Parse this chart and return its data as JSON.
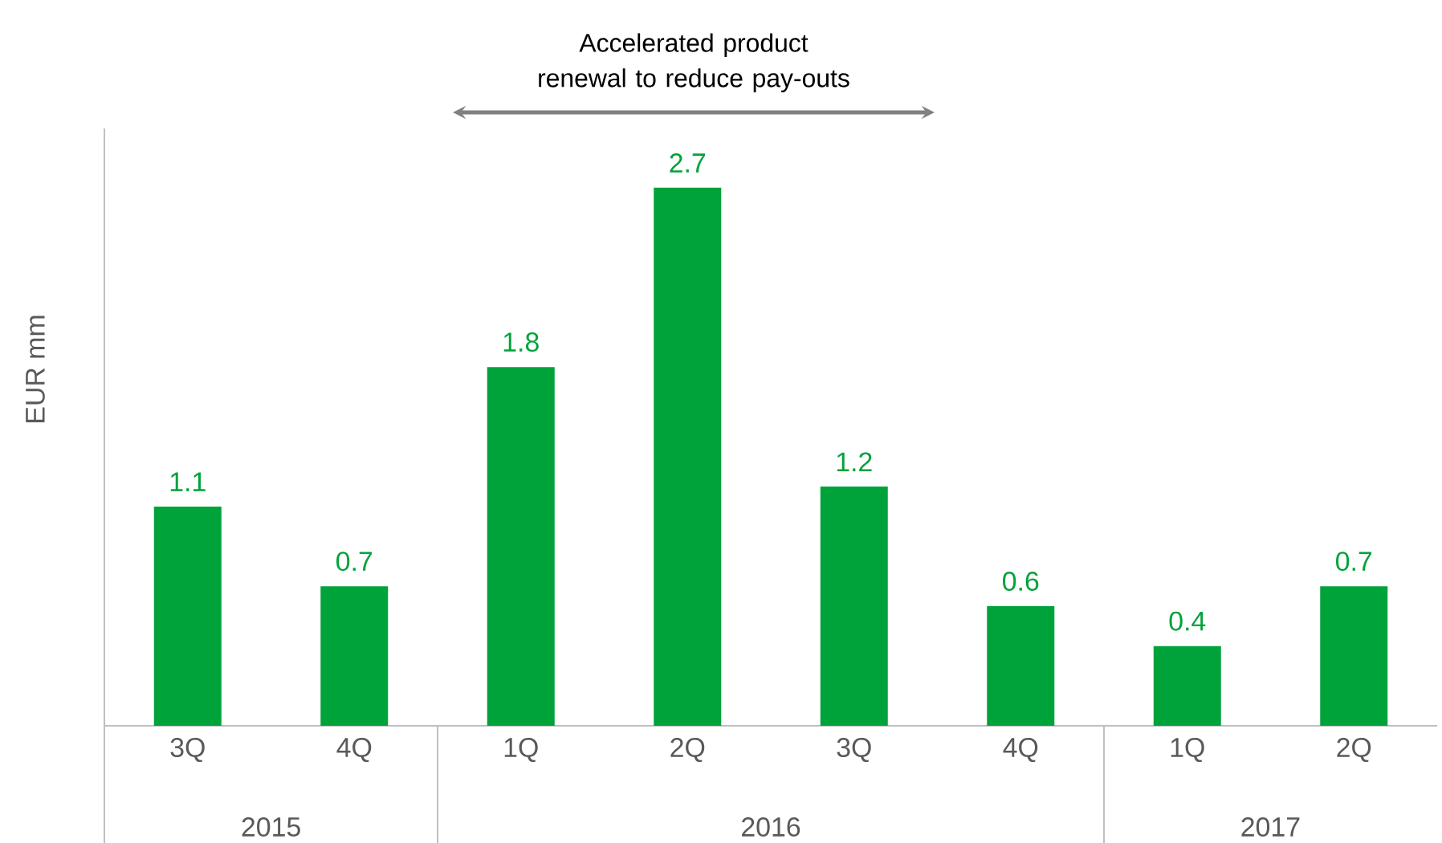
{
  "chart_data": {
    "type": "bar",
    "categories": [
      "3Q",
      "4Q",
      "1Q",
      "2Q",
      "3Q",
      "4Q",
      "1Q",
      "2Q"
    ],
    "values": [
      1.1,
      0.7,
      1.8,
      2.7,
      1.2,
      0.6,
      0.4,
      0.7
    ],
    "color": "#00a33a",
    "ylabel": "EUR mm",
    "data_labels": true,
    "annotations": [
      "Accelerated product renewal to reduce pay-outs",
      "2015",
      "2016",
      "2017"
    ]
  }
}
